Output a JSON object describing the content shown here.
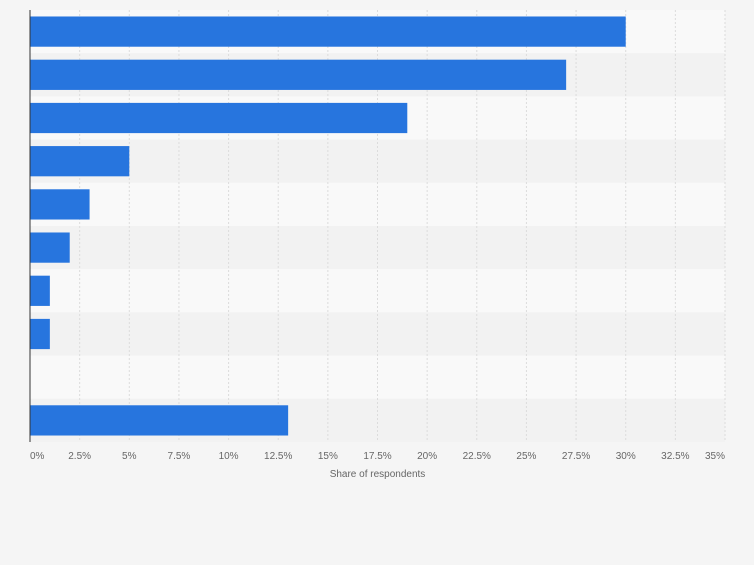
{
  "colors": {
    "page_background": "#f5f5f5",
    "band_light": "#f9f9f9",
    "band_dark": "#f2f2f2",
    "bar": "#2775de",
    "grid": "#dcdcdc",
    "axis": "#333333",
    "tick_text": "#666666"
  },
  "chart_data": {
    "type": "bar",
    "orientation": "horizontal",
    "categories": [
      "",
      "",
      "",
      "",
      "",
      "",
      "",
      "",
      "",
      ""
    ],
    "values": [
      30,
      27,
      19,
      5,
      3,
      2,
      1,
      1,
      0,
      13
    ],
    "xlabel": "Share of respondents",
    "ylabel": "",
    "xlim": [
      0,
      35
    ],
    "x_ticks": [
      "0%",
      "2.5%",
      "5%",
      "7.5%",
      "10%",
      "12.5%",
      "15%",
      "17.5%",
      "20%",
      "22.5%",
      "25%",
      "27.5%",
      "30%",
      "32.5%",
      "35%"
    ],
    "x_tick_values": [
      0,
      2.5,
      5,
      7.5,
      10,
      12.5,
      15,
      17.5,
      20,
      22.5,
      25,
      27.5,
      30,
      32.5,
      35
    ],
    "grid": true,
    "legend": "none",
    "series_color": "#2775de"
  }
}
